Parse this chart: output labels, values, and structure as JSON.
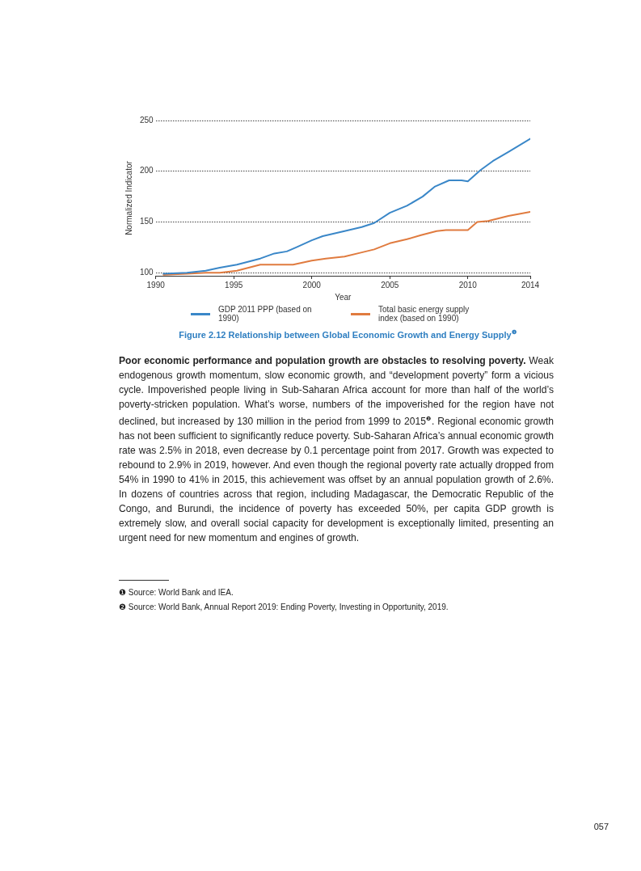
{
  "chart_data": {
    "type": "line",
    "title": "Figure 2.12   Relationship between Global Economic Growth and Energy Supply$^{❶}$",
    "xlabel": "Year",
    "ylabel": "Normalized Indicator",
    "xlim": [
      1990,
      2014
    ],
    "xticks": [
      1990,
      1995,
      2000,
      2005,
      2010,
      2014
    ],
    "ylim": [
      97,
      250
    ],
    "yticks": [
      100,
      150,
      200,
      250
    ],
    "grid": "y",
    "legend": "bottom",
    "marker": "none",
    "line_style": "solid",
    "series": [
      {
        "name": "GDP 2011 PPP (based on 1990)",
        "color": "#3a87c8",
        "x": [
          1990.5,
          1992,
          1993.2,
          1994.1,
          1995.2,
          1996.7,
          1997.6,
          1998.4,
          1999,
          2000,
          2000.7,
          2002.1,
          2003.2,
          2004,
          2005,
          2006.1,
          2007.1,
          2007.9,
          2008.8,
          2009.6,
          2010,
          2010.8,
          2011.6,
          2012.6,
          2014
        ],
        "values": [
          99,
          100,
          102,
          105,
          108,
          114,
          119,
          121,
          125,
          132,
          136,
          141,
          145,
          149,
          159,
          166,
          175,
          185,
          191,
          191,
          190,
          201,
          210,
          219,
          232
        ]
      },
      {
        "name": "Total basic energy supply index (based on 1990)",
        "color": "#e07b3f",
        "x": [
          1990.5,
          1992,
          1993.2,
          1994.1,
          1995.2,
          1996.7,
          1997.6,
          1998.8,
          2000,
          2000.9,
          2002.1,
          2003.2,
          2004,
          2005,
          2006.1,
          2007,
          2008,
          2008.6,
          2010,
          2010.6,
          2011.3,
          2012.6,
          2013.3,
          2014
        ],
        "values": [
          98,
          99,
          100,
          100,
          102,
          108,
          108,
          108,
          112,
          114,
          116,
          120,
          123,
          129,
          133,
          137,
          141,
          142,
          142,
          150,
          151,
          156,
          158,
          160
        ]
      }
    ],
    "annotations": [
      "Poor economic performance and population growth are obstacles to resolving poverty.",
      "Weak endogenous growth momentum, slow economic growth, and “development poverty” form a vicious cycle. Impoverished people living in Sub-Saharan Africa account for more than half of the world’s poverty-stricken population. What’s worse, numbers of the impoverished for the region have not declined, but increased by 130 million in the period from 1999 to 2015$^{❷}$. Regional economic growth has not been sufficient to significantly reduce poverty. Sub-Saharan Africa’s annual economic growth rate was 2.5% in 2018, even decrease by 0.1 percentage point from 2017. Growth was expected to rebound to 2.9% in 2019, however. And even though the regional poverty rate actually dropped from 54% in 1990 to 41% in 2015, this achievement was offset by an annual population growth of 2.6%. In dozens of countries across that region, including Madagascar, the Democratic Republic of the Congo, and Burundi, the incidence of poverty has exceeded 50%, per capita GDP growth is extremely slow, and overall social capacity for development is exceptionally limited, presenting an urgent need for new momentum and engines of growth.",
      "❶ Source: World Bank and IEA.",
      "❷ Source: World Bank, Annual Report 2019: Ending Poverty, Investing in Opportunity, 2019.",
      "057"
    ]
  }
}
